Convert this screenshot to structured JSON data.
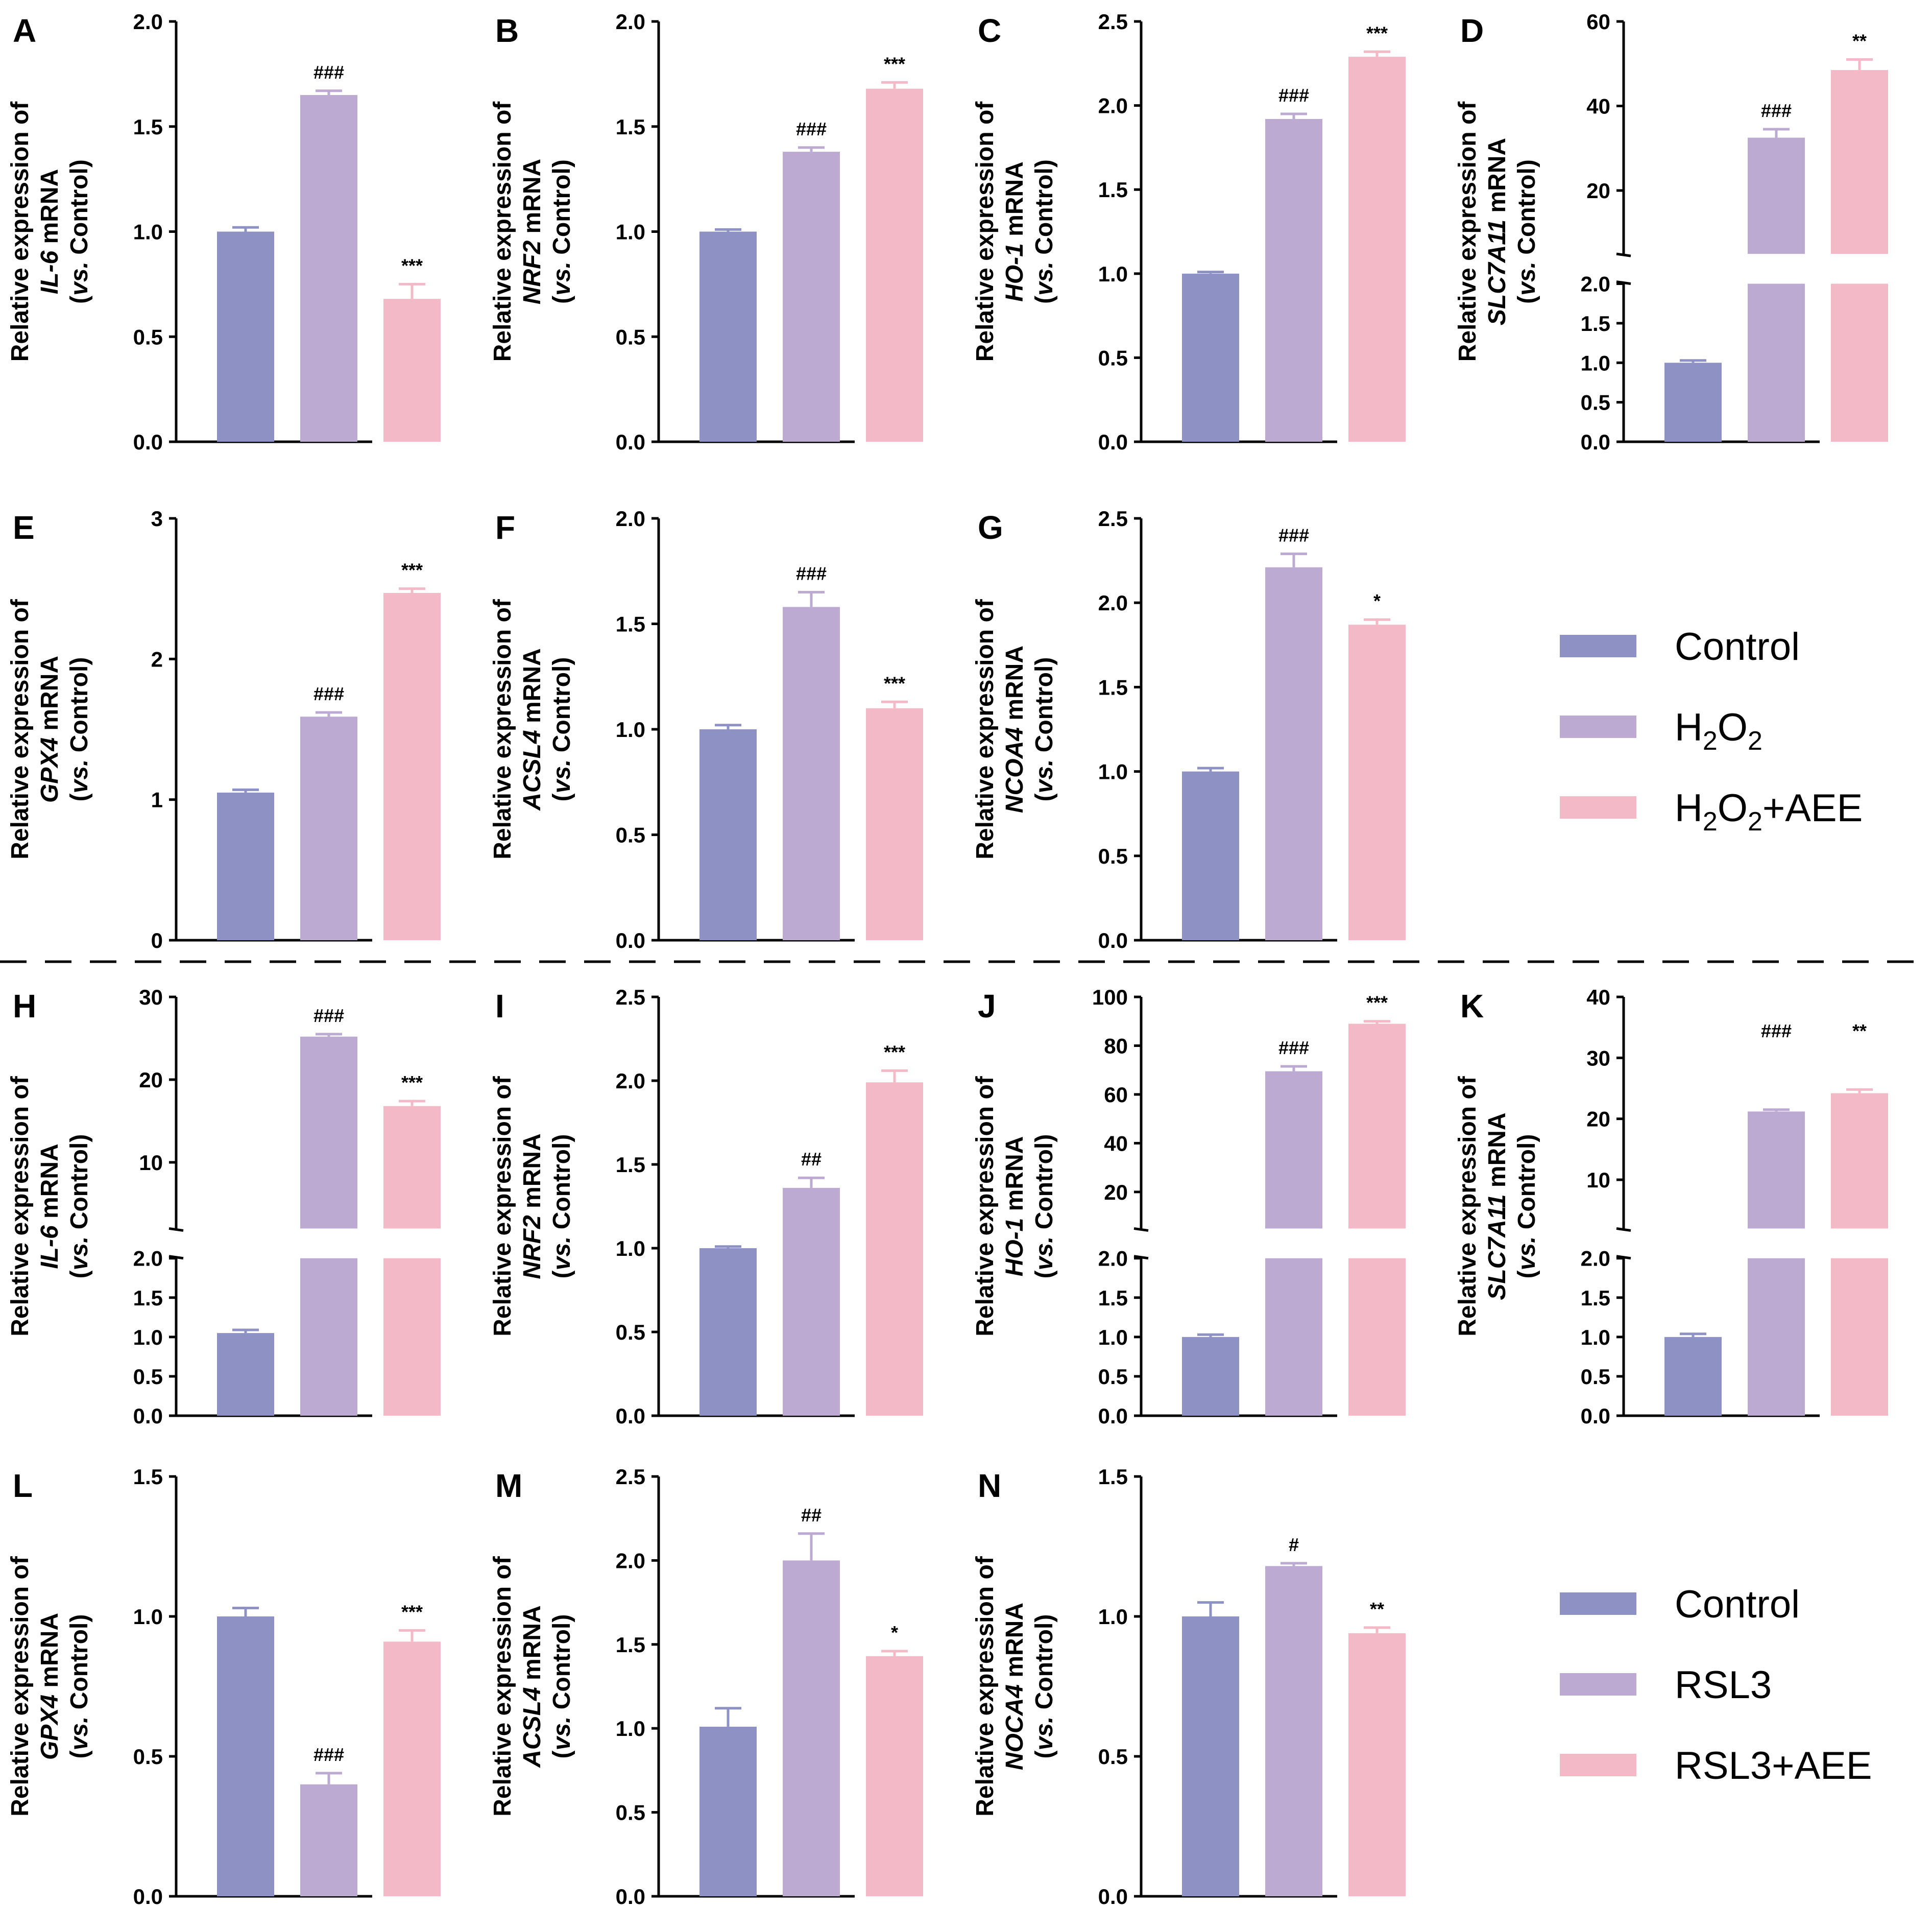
{
  "colors": {
    "control": "#8d91c3",
    "treat": "#bcaad2",
    "treat_aee": "#f4b9c6",
    "axis": "#000000"
  },
  "y_label_prefix": "Relative expression of",
  "y_label_mrna": "mRNA",
  "y_label_vs": "vs.",
  "y_label_control": "Control)",
  "legend_top": {
    "items": [
      {
        "label": "Control",
        "color": "#8d91c3"
      },
      {
        "base": "H",
        "sub": "2",
        "mid": "O",
        "sub2": "2",
        "tail": "",
        "color": "#bcaad2"
      },
      {
        "base": "H",
        "sub": "2",
        "mid": "O",
        "sub2": "2",
        "tail": "+AEE",
        "color": "#f4b9c6"
      }
    ]
  },
  "legend_bottom": {
    "items": [
      {
        "label": "Control",
        "color": "#8d91c3"
      },
      {
        "label": "RSL3",
        "color": "#bcaad2"
      },
      {
        "label": "RSL3+AEE",
        "color": "#f4b9c6"
      }
    ]
  },
  "chart_data": [
    {
      "type": "bar",
      "panel": "A",
      "gene": "IL-6",
      "categories": [
        "Control",
        "H2O2",
        "H2O2+AEE"
      ],
      "values": [
        1.0,
        1.65,
        0.68
      ],
      "errors": [
        0.02,
        0.02,
        0.07
      ],
      "significance": [
        "",
        "###",
        "***"
      ],
      "ylim": [
        0,
        2.0
      ],
      "yticks": [
        "0.0",
        "0.5",
        "1.0",
        "1.5",
        "2.0"
      ]
    },
    {
      "type": "bar",
      "panel": "B",
      "gene": "NRF2",
      "categories": [
        "Control",
        "H2O2",
        "H2O2+AEE"
      ],
      "values": [
        1.0,
        1.38,
        1.68
      ],
      "errors": [
        0.01,
        0.02,
        0.03
      ],
      "significance": [
        "",
        "###",
        "***"
      ],
      "ylim": [
        0,
        2.0
      ],
      "yticks": [
        "0.0",
        "0.5",
        "1.0",
        "1.5",
        "2.0"
      ]
    },
    {
      "type": "bar",
      "panel": "C",
      "gene": "HO-1",
      "categories": [
        "Control",
        "H2O2",
        "H2O2+AEE"
      ],
      "values": [
        1.0,
        1.92,
        2.29
      ],
      "errors": [
        0.01,
        0.03,
        0.03
      ],
      "significance": [
        "",
        "###",
        "***"
      ],
      "ylim": [
        0,
        2.5
      ],
      "yticks": [
        "0.0",
        "0.5",
        "1.0",
        "1.5",
        "2.0",
        "2.5"
      ]
    },
    {
      "type": "bar",
      "panel": "D",
      "gene": "SLC7A11",
      "categories": [
        "Control",
        "H2O2",
        "H2O2+AEE"
      ],
      "values": [
        1.0,
        32.5,
        48.5
      ],
      "errors": [
        0.01,
        2.0,
        2.5
      ],
      "significance": [
        "",
        "###",
        "**"
      ],
      "broken_axis": true,
      "lower_ylim": [
        0,
        2.0
      ],
      "lower_yticks": [
        "0.0",
        "0.5",
        "1.0",
        "1.5",
        "2.0"
      ],
      "upper_ylim": [
        5,
        60
      ],
      "upper_yticks": [
        "20",
        "40",
        "60"
      ]
    },
    {
      "type": "bar",
      "panel": "E",
      "gene": "GPX4",
      "categories": [
        "Control",
        "H2O2",
        "H2O2+AEE"
      ],
      "values": [
        1.05,
        1.59,
        2.47
      ],
      "errors": [
        0.02,
        0.03,
        0.03
      ],
      "significance": [
        "",
        "###",
        "***"
      ],
      "ylim": [
        0,
        3
      ],
      "yticks": [
        "0",
        "1",
        "2",
        "3"
      ]
    },
    {
      "type": "bar",
      "panel": "F",
      "gene": "ACSL4",
      "categories": [
        "Control",
        "H2O2",
        "H2O2+AEE"
      ],
      "values": [
        1.0,
        1.58,
        1.1
      ],
      "errors": [
        0.02,
        0.07,
        0.03
      ],
      "significance": [
        "",
        "###",
        "***"
      ],
      "ylim": [
        0,
        2.0
      ],
      "yticks": [
        "0.0",
        "0.5",
        "1.0",
        "1.5",
        "2.0"
      ]
    },
    {
      "type": "bar",
      "panel": "G",
      "gene": "NCOA4",
      "categories": [
        "Control",
        "H2O2",
        "H2O2+AEE"
      ],
      "values": [
        1.0,
        2.21,
        1.87
      ],
      "errors": [
        0.02,
        0.08,
        0.03
      ],
      "significance": [
        "",
        "###",
        "*"
      ],
      "ylim": [
        0,
        2.5
      ],
      "yticks": [
        "0.0",
        "0.5",
        "1.0",
        "1.5",
        "2.0",
        "2.5"
      ]
    },
    {
      "type": "bar",
      "panel": "H",
      "gene": "IL-6",
      "categories": [
        "Control",
        "RSL3",
        "RSL3+AEE"
      ],
      "values": [
        1.05,
        25.2,
        16.8
      ],
      "errors": [
        0.02,
        0.3,
        0.6
      ],
      "significance": [
        "",
        "###",
        "***"
      ],
      "broken_axis": true,
      "lower_ylim": [
        0,
        2.0
      ],
      "lower_yticks": [
        "0.0",
        "0.5",
        "1.0",
        "1.5",
        "2.0"
      ],
      "upper_ylim": [
        2,
        30
      ],
      "upper_yticks": [
        "10",
        "20",
        "30"
      ]
    },
    {
      "type": "bar",
      "panel": "I",
      "gene": "NRF2",
      "categories": [
        "Control",
        "RSL3",
        "RSL3+AEE"
      ],
      "values": [
        1.0,
        1.36,
        1.99
      ],
      "errors": [
        0.01,
        0.06,
        0.07
      ],
      "significance": [
        "",
        "##",
        "***"
      ],
      "ylim": [
        0,
        2.5
      ],
      "yticks": [
        "0.0",
        "0.5",
        "1.0",
        "1.5",
        "2.0",
        "2.5"
      ]
    },
    {
      "type": "bar",
      "panel": "J",
      "gene": "HO-1",
      "categories": [
        "Control",
        "RSL3",
        "RSL3+AEE"
      ],
      "values": [
        1.0,
        69.5,
        89.0
      ],
      "errors": [
        0.01,
        2.0,
        1.0
      ],
      "significance": [
        "",
        "###",
        "***"
      ],
      "broken_axis": true,
      "lower_ylim": [
        0,
        2.0
      ],
      "lower_yticks": [
        "0.0",
        "0.5",
        "1.0",
        "1.5",
        "2.0"
      ],
      "upper_ylim": [
        5,
        100
      ],
      "upper_yticks": [
        "20",
        "40",
        "60",
        "80",
        "100"
      ]
    },
    {
      "type": "bar",
      "panel": "K",
      "gene": "SLC7A11",
      "categories": [
        "Control",
        "RSL3",
        "RSL3+AEE"
      ],
      "values": [
        1.0,
        21.2,
        24.2
      ],
      "errors": [
        0.02,
        0.3,
        0.6
      ],
      "significance": [
        "",
        "###",
        "**"
      ],
      "broken_axis": true,
      "lower_ylim": [
        0,
        2.0
      ],
      "lower_yticks": [
        "0.0",
        "0.5",
        "1.0",
        "1.5",
        "2.0"
      ],
      "upper_ylim": [
        2,
        40
      ],
      "upper_yticks": [
        "10",
        "20",
        "30",
        "40"
      ],
      "sig_above": [
        false,
        true,
        true
      ]
    },
    {
      "type": "bar",
      "panel": "L",
      "gene": "GPX4",
      "categories": [
        "Control",
        "RSL3",
        "RSL3+AEE"
      ],
      "values": [
        1.0,
        0.4,
        0.91
      ],
      "errors": [
        0.03,
        0.04,
        0.04
      ],
      "significance": [
        "",
        "###",
        "***"
      ],
      "ylim": [
        0,
        1.5
      ],
      "yticks": [
        "0.0",
        "0.5",
        "1.0",
        "1.5"
      ]
    },
    {
      "type": "bar",
      "panel": "M",
      "gene": "ACSL4",
      "categories": [
        "Control",
        "RSL3",
        "RSL3+AEE"
      ],
      "values": [
        1.01,
        2.0,
        1.43
      ],
      "errors": [
        0.11,
        0.16,
        0.03
      ],
      "significance": [
        "",
        "##",
        "*"
      ],
      "ylim": [
        0,
        2.5
      ],
      "yticks": [
        "0.0",
        "0.5",
        "1.0",
        "1.5",
        "2.0",
        "2.5"
      ]
    },
    {
      "type": "bar",
      "panel": "N",
      "gene": "NOCA4",
      "categories": [
        "Control",
        "RSL3",
        "RSL3+AEE"
      ],
      "values": [
        1.0,
        1.18,
        0.94
      ],
      "errors": [
        0.05,
        0.01,
        0.02
      ],
      "significance": [
        "",
        "#",
        "**"
      ],
      "ylim": [
        0,
        1.5
      ],
      "yticks": [
        "0.0",
        "0.5",
        "1.0",
        "1.5"
      ]
    }
  ]
}
